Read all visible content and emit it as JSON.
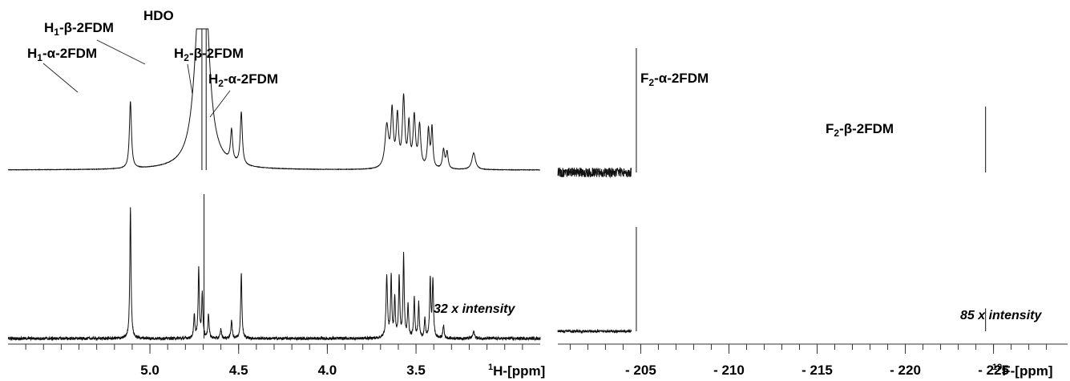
{
  "chart_data": [
    {
      "type": "line",
      "nucleus": "1H",
      "x_axis": {
        "title_sup": "1",
        "title_main": "H-[ppm]",
        "range": [
          5.8,
          2.8
        ],
        "major_ticks": [
          5.0,
          4.5,
          4.0,
          3.5
        ],
        "tick_labels": [
          "5.0",
          "4.5",
          "4.0",
          "3.5"
        ],
        "minor_step": 0.1
      },
      "series": [
        {
          "panel": "top",
          "peaks": [
            {
              "ppm": 5.11,
              "rel_height": 0.64,
              "width": 0.007
            },
            {
              "ppm": 4.72,
              "rel_height": 1.25,
              "width": 0.035
            },
            {
              "ppm": 4.69,
              "rel_height": 1.25,
              "width": 0.03
            },
            {
              "ppm": 4.54,
              "rel_height": 0.3,
              "width": 0.007
            },
            {
              "ppm": 4.485,
              "rel_height": 0.5,
              "width": 0.007
            },
            {
              "ppm": 3.665,
              "rel_height": 0.4,
              "width": 0.012
            },
            {
              "ppm": 3.635,
              "rel_height": 0.52,
              "width": 0.008
            },
            {
              "ppm": 3.605,
              "rel_height": 0.48,
              "width": 0.008
            },
            {
              "ppm": 3.57,
              "rel_height": 0.66,
              "width": 0.008
            },
            {
              "ppm": 3.54,
              "rel_height": 0.4,
              "width": 0.007
            },
            {
              "ppm": 3.51,
              "rel_height": 0.48,
              "width": 0.008
            },
            {
              "ppm": 3.48,
              "rel_height": 0.4,
              "width": 0.008
            },
            {
              "ppm": 3.43,
              "rel_height": 0.36,
              "width": 0.007
            },
            {
              "ppm": 3.41,
              "rel_height": 0.38,
              "width": 0.006
            },
            {
              "ppm": 3.345,
              "rel_height": 0.18,
              "width": 0.007
            },
            {
              "ppm": 3.325,
              "rel_height": 0.16,
              "width": 0.007
            },
            {
              "ppm": 3.175,
              "rel_height": 0.16,
              "width": 0.012
            }
          ]
        },
        {
          "panel": "bottom",
          "intensity_note": "32 x intensity",
          "peaks": [
            {
              "ppm": 5.11,
              "rel_height": 1.0,
              "width": 0.004
            },
            {
              "ppm": 4.75,
              "rel_height": 0.17,
              "width": 0.004
            },
            {
              "ppm": 4.725,
              "rel_height": 0.52,
              "width": 0.004
            },
            {
              "ppm": 4.705,
              "rel_height": 0.34,
              "width": 0.004
            },
            {
              "ppm": 4.67,
              "rel_height": 0.18,
              "width": 0.004
            },
            {
              "ppm": 4.6,
              "rel_height": 0.07,
              "width": 0.004
            },
            {
              "ppm": 4.54,
              "rel_height": 0.14,
              "width": 0.004
            },
            {
              "ppm": 4.485,
              "rel_height": 0.5,
              "width": 0.004
            },
            {
              "ppm": 3.665,
              "rel_height": 0.46,
              "width": 0.005
            },
            {
              "ppm": 3.64,
              "rel_height": 0.46,
              "width": 0.004
            },
            {
              "ppm": 3.62,
              "rel_height": 0.3,
              "width": 0.004
            },
            {
              "ppm": 3.595,
              "rel_height": 0.46,
              "width": 0.004
            },
            {
              "ppm": 3.57,
              "rel_height": 0.62,
              "width": 0.004
            },
            {
              "ppm": 3.545,
              "rel_height": 0.24,
              "width": 0.004
            },
            {
              "ppm": 3.51,
              "rel_height": 0.3,
              "width": 0.004
            },
            {
              "ppm": 3.485,
              "rel_height": 0.26,
              "width": 0.004
            },
            {
              "ppm": 3.45,
              "rel_height": 0.14,
              "width": 0.004
            },
            {
              "ppm": 3.42,
              "rel_height": 0.44,
              "width": 0.004
            },
            {
              "ppm": 3.405,
              "rel_height": 0.44,
              "width": 0.004
            },
            {
              "ppm": 3.345,
              "rel_height": 0.1,
              "width": 0.004
            },
            {
              "ppm": 3.175,
              "rel_height": 0.05,
              "width": 0.006
            }
          ]
        }
      ],
      "solvent_peak": {
        "ppm": 4.695,
        "label": "HDO"
      },
      "annotations": [
        {
          "base": "H",
          "sub": "1",
          "rest": "-α-2FDM",
          "ppm": 5.11
        },
        {
          "base": "H",
          "sub": "1",
          "rest": "-β-2FDM",
          "ppm": 4.75
        },
        {
          "base": "H",
          "sub": "2",
          "rest": "-β-2FDM",
          "ppm": 4.54
        },
        {
          "base": "H",
          "sub": "2",
          "rest": "-α-2FDM",
          "ppm": 4.485
        }
      ]
    },
    {
      "type": "line",
      "nucleus": "19F",
      "x_axis": {
        "title_sup": "19",
        "title_main": "F-[ppm]",
        "range": [
          -200.3,
          -229.2
        ],
        "major_ticks": [
          -205,
          -210,
          -215,
          -220,
          -225
        ],
        "tick_labels": [
          "- 205",
          "- 210",
          "- 215",
          "- 220",
          "- 225"
        ],
        "minor_step": 1
      },
      "series": [
        {
          "panel": "top",
          "peaks": [
            {
              "ppm": -204.75,
              "rel_height": 1.0
            },
            {
              "ppm": -224.55,
              "rel_height": 0.53
            }
          ]
        },
        {
          "panel": "bottom",
          "intensity_note": "85 x intensity",
          "peaks": [
            {
              "ppm": -204.75,
              "rel_height": 1.0
            },
            {
              "ppm": -224.55,
              "rel_height": 0.22
            }
          ]
        }
      ],
      "annotations": [
        {
          "base": "F",
          "sub": "2",
          "rest": "-α-2FDM",
          "ppm": -204.75
        },
        {
          "base": "F",
          "sub": "2",
          "rest": "-β-2FDM",
          "ppm": -224.55
        }
      ]
    }
  ]
}
